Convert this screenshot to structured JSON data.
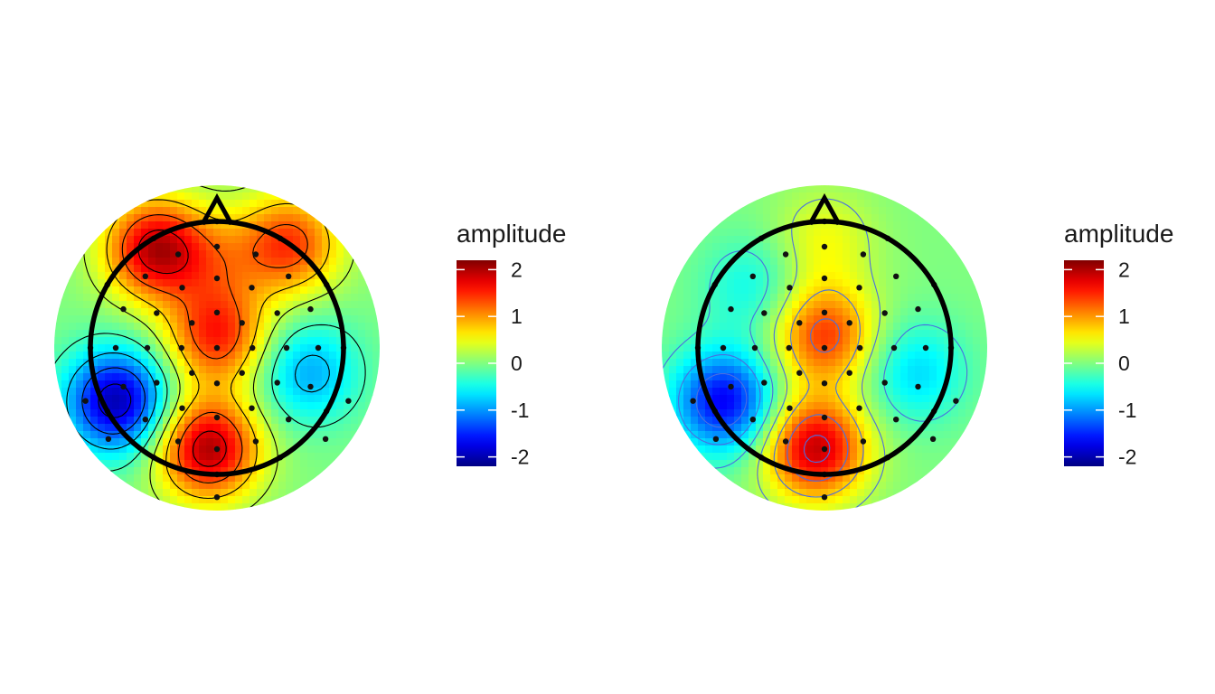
{
  "chart_data": [
    {
      "type": "heatmap",
      "subtype": "eeg-topographic-map",
      "legend": {
        "title": "amplitude",
        "ticks": [
          2,
          1,
          0,
          -1,
          -2
        ],
        "range": [
          -2.2,
          2.2
        ],
        "placement": "right",
        "colormap": "jet"
      },
      "contour_color": "#000000",
      "value_range": [
        -2.2,
        2.2
      ],
      "regions": [
        {
          "label": "central",
          "az": 0,
          "r": 0.1,
          "amplitude": 1.5
        },
        {
          "label": "left-temporal-posterior",
          "az": -118,
          "r": 0.9,
          "amplitude": -2.0
        },
        {
          "label": "occipital",
          "az": 185,
          "r": 0.8,
          "amplitude": 2.0
        },
        {
          "label": "left-frontal",
          "az": -32,
          "r": 0.92,
          "amplitude": 1.9
        },
        {
          "label": "right-frontal",
          "az": 35,
          "r": 1.0,
          "amplitude": 1.4
        },
        {
          "label": "right-temporal",
          "az": 105,
          "r": 0.75,
          "amplitude": -0.9
        },
        {
          "label": "frontal-midline",
          "az": 0,
          "r": 0.7,
          "amplitude": 0.6
        }
      ]
    },
    {
      "type": "heatmap",
      "subtype": "eeg-topographic-map",
      "legend": {
        "title": "amplitude",
        "ticks": [
          2,
          1,
          0,
          -1,
          -2
        ],
        "range": [
          -2.2,
          2.2
        ],
        "placement": "right",
        "colormap": "jet"
      },
      "contour_color": "#4a6ee0",
      "value_range": [
        -2.2,
        2.2
      ],
      "regions": [
        {
          "label": "central",
          "az": 0,
          "r": 0.1,
          "amplitude": 1.4
        },
        {
          "label": "left-temporal-posterior",
          "az": -118,
          "r": 0.9,
          "amplitude": -1.7
        },
        {
          "label": "occipital",
          "az": 185,
          "r": 0.8,
          "amplitude": 1.9
        },
        {
          "label": "left-frontal",
          "az": -50,
          "r": 0.75,
          "amplitude": -0.5
        },
        {
          "label": "right-temporal",
          "az": 105,
          "r": 0.75,
          "amplitude": -0.7
        },
        {
          "label": "frontal-midline",
          "az": 0,
          "r": 0.85,
          "amplitude": 0.5
        }
      ]
    }
  ]
}
